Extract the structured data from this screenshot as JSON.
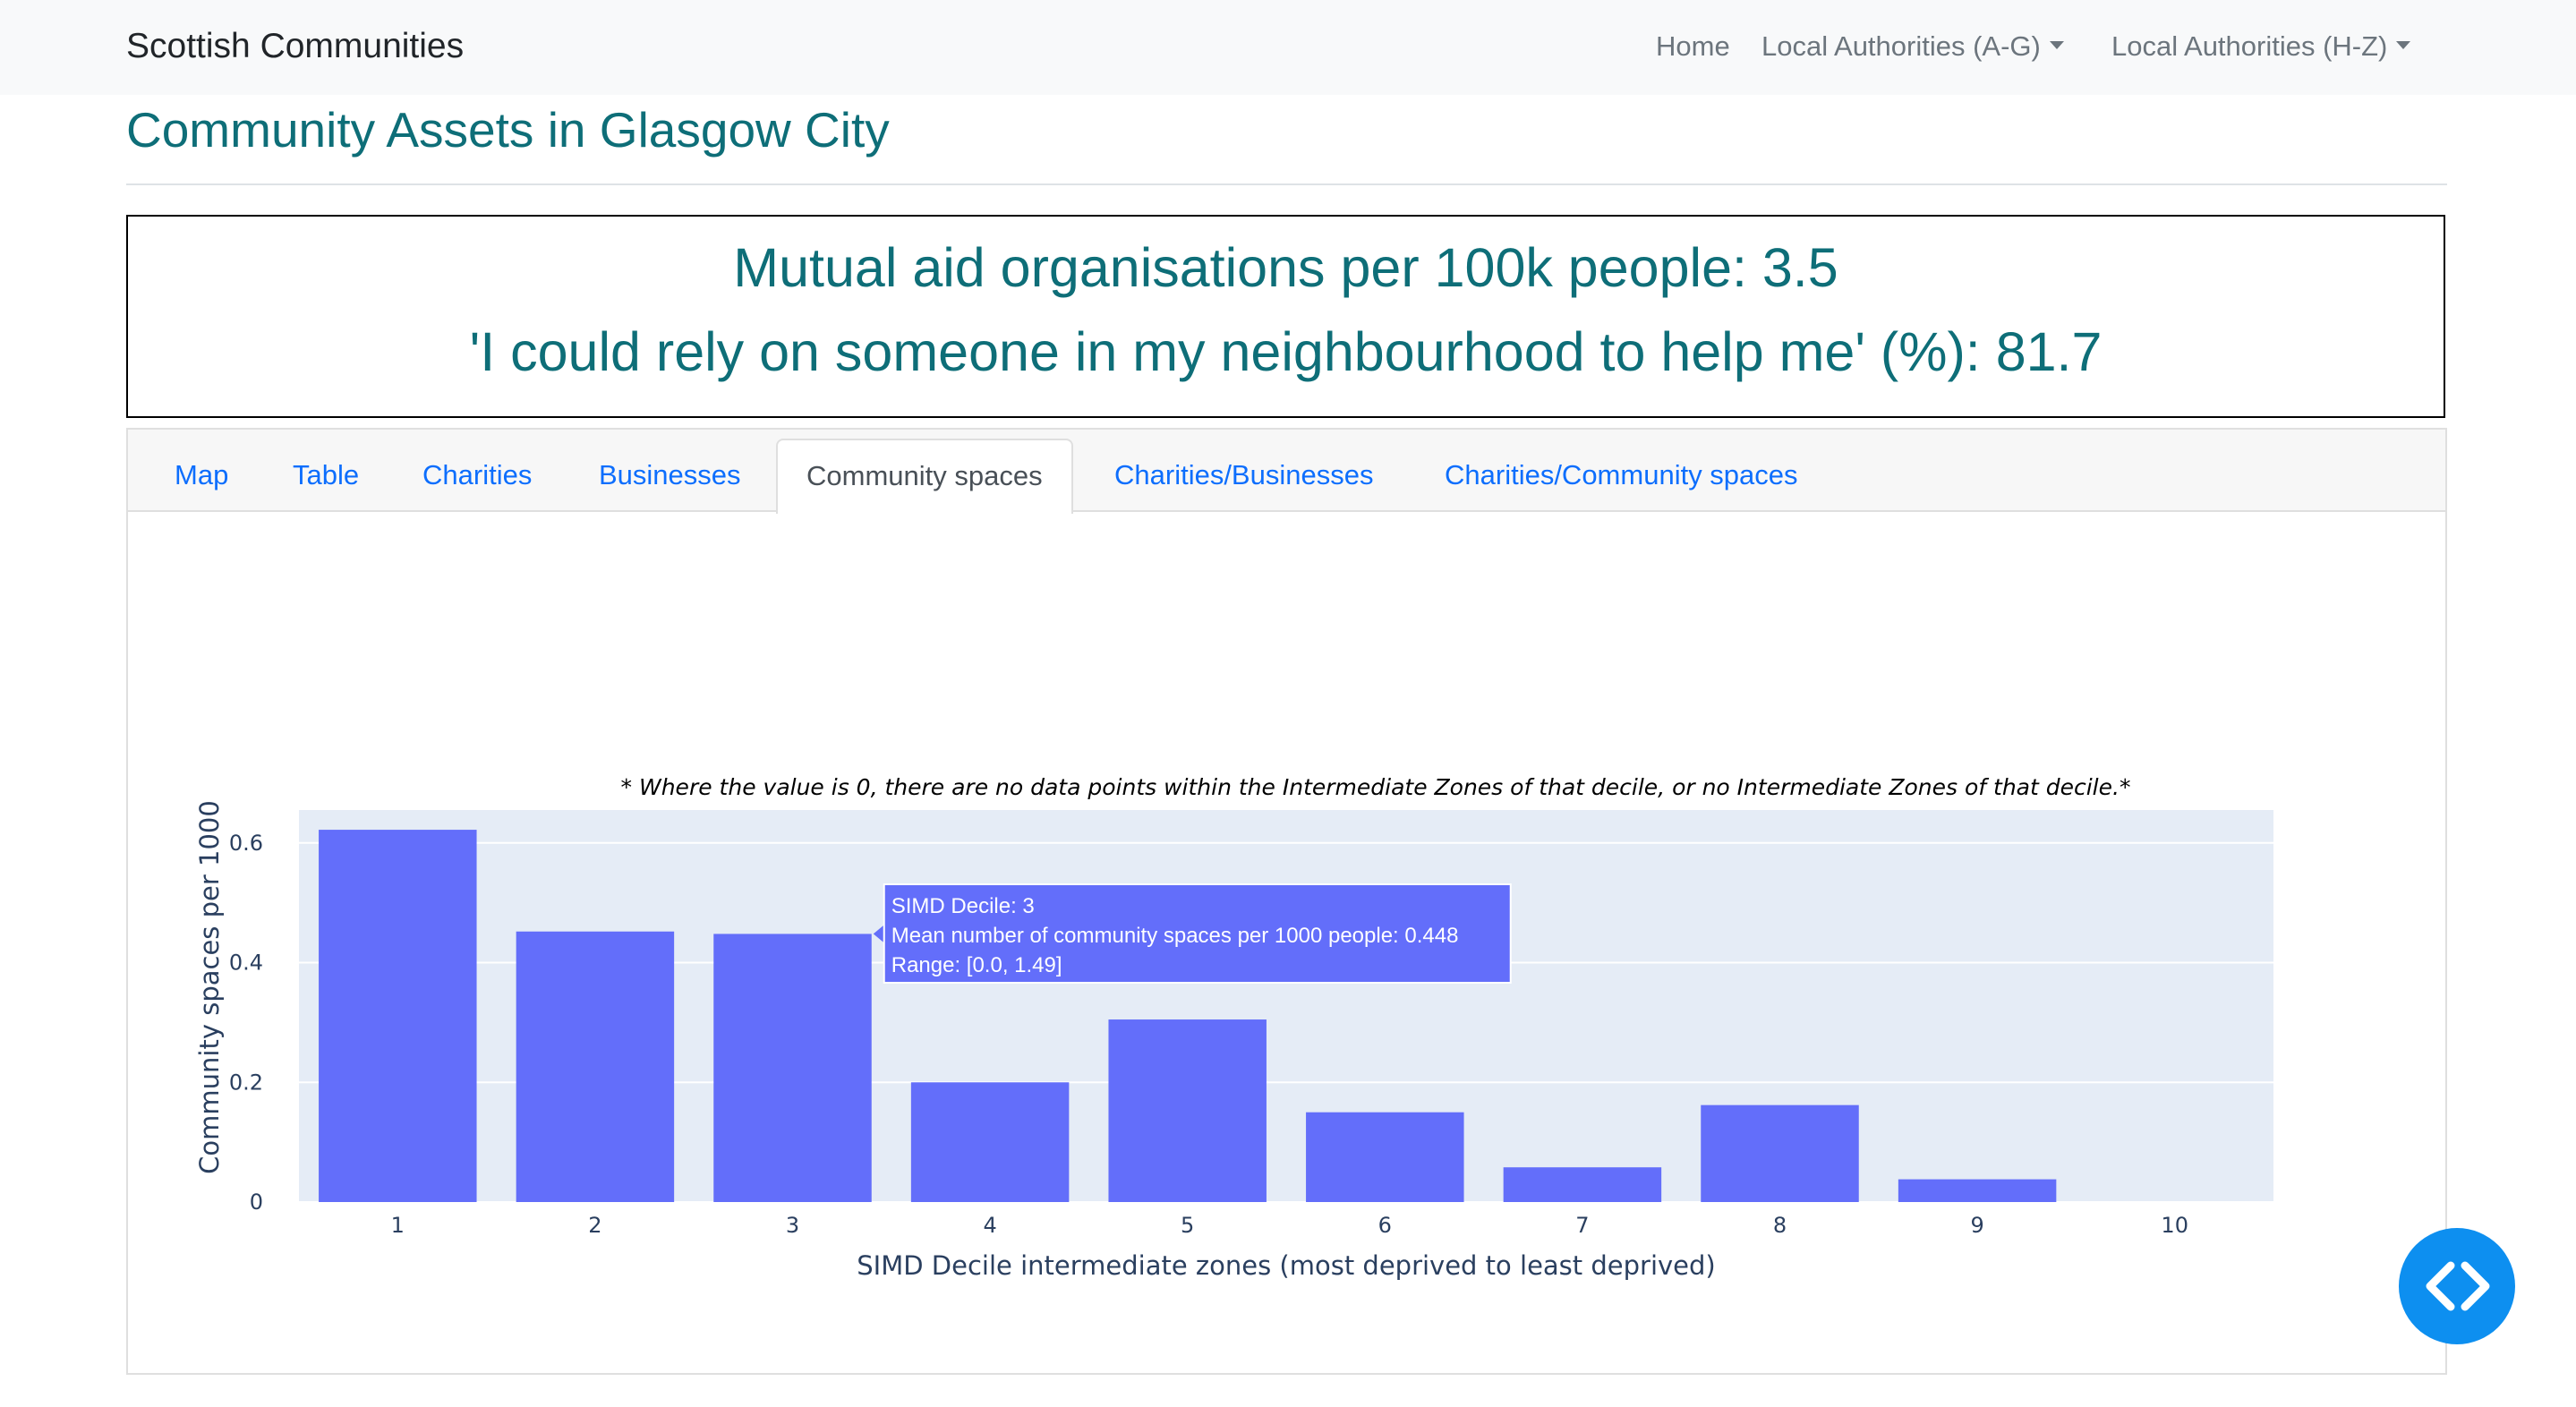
{
  "navbar": {
    "brand": "Scottish Communities",
    "links": [
      {
        "label": "Home"
      },
      {
        "label": "Local Authorities (A-G)"
      },
      {
        "label": "Local Authorities (H-Z)"
      }
    ]
  },
  "page": {
    "title": "Community Assets in Glasgow City"
  },
  "stats": {
    "line1": "Mutual aid organisations per 100k people: 3.5",
    "line2": "'I could rely on someone in my neighbourhood to help me' (%): 81.7"
  },
  "tabs": [
    {
      "label": "Map"
    },
    {
      "label": "Table"
    },
    {
      "label": "Charities"
    },
    {
      "label": "Businesses"
    },
    {
      "label": "Community spaces",
      "active": true
    },
    {
      "label": "Charities/Businesses"
    },
    {
      "label": "Charities/Community spaces"
    }
  ],
  "chart_data": {
    "type": "bar",
    "title": "* Where the value is 0, there are no data points within the Intermediate Zones of that decile, or no Intermediate Zones of that decile.*",
    "xlabel": "SIMD Decile intermediate zones (most deprived to least deprived)",
    "ylabel": "Community spaces per 1000",
    "categories": [
      "1",
      "2",
      "3",
      "4",
      "5",
      "6",
      "7",
      "8",
      "9",
      "10"
    ],
    "values": [
      0.622,
      0.452,
      0.448,
      0.2,
      0.305,
      0.15,
      0.058,
      0.162,
      0.038,
      0
    ],
    "ylim": [
      0,
      0.655
    ],
    "yticks": [
      {
        "value": 0,
        "label": "0"
      },
      {
        "value": 0.2,
        "label": "0.2"
      },
      {
        "value": 0.4,
        "label": "0.4"
      },
      {
        "value": 0.6,
        "label": "0.6"
      }
    ],
    "bar_color": "#636efa",
    "plot_bg": "#e5ecf6",
    "grid": true,
    "tooltip": {
      "category": "3",
      "lines": [
        "SIMD Decile: 3",
        "Mean number of community spaces per 1000 people: 0.448",
        "Range: [0.0, 1.49]"
      ]
    }
  },
  "fab": {
    "icon": "code-icon"
  }
}
